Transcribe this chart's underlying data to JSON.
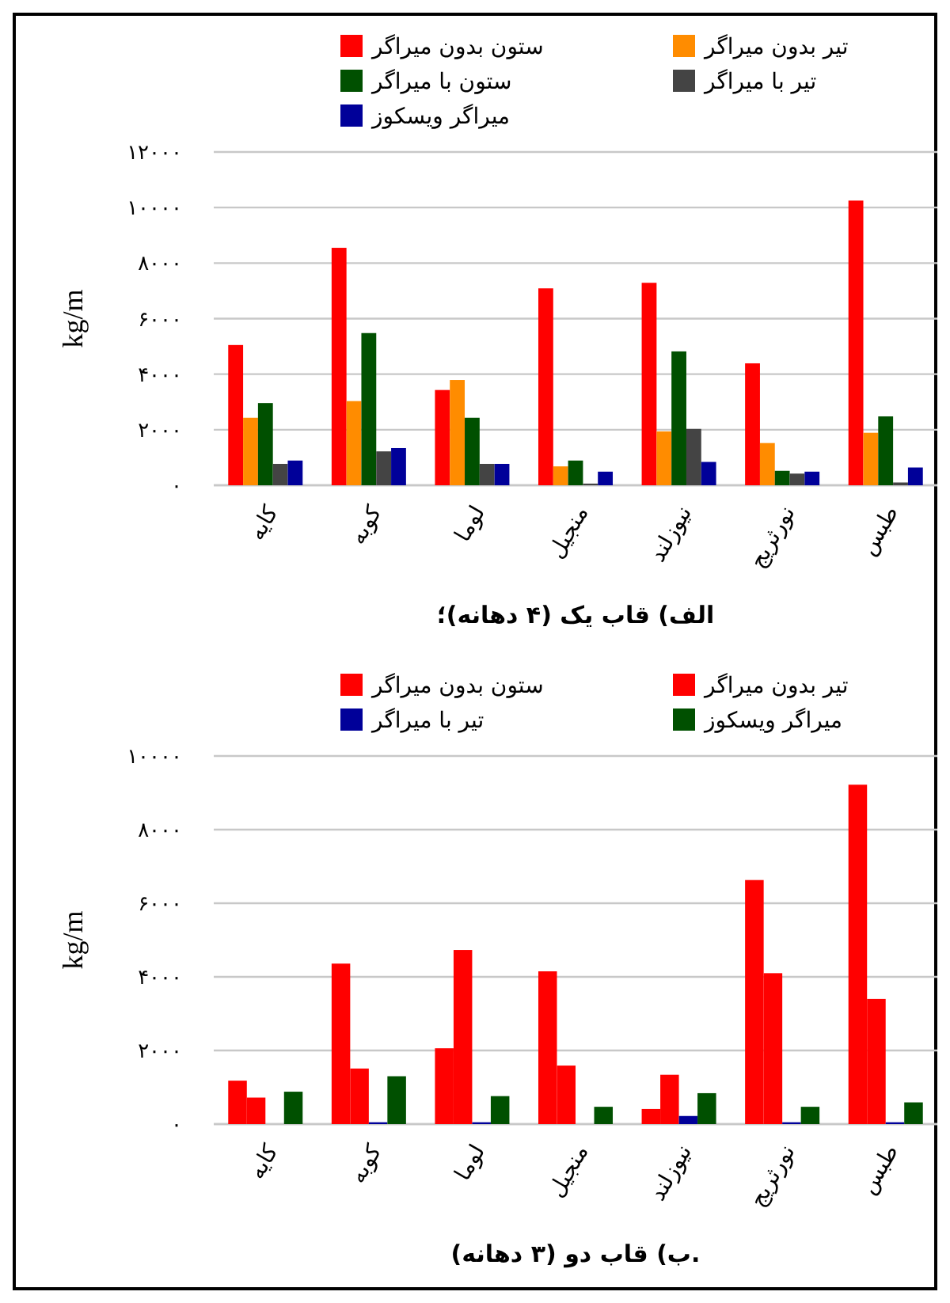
{
  "chart_data": [
    {
      "type": "bar",
      "title": "الف) قاب یک (۴ دهانه)؛",
      "ylabel": "kg/m",
      "categories": [
        "کایه",
        "کوبه",
        "لوما",
        "منجیل",
        "نیوزلند",
        "نورثریج",
        "طبس"
      ],
      "series": [
        {
          "name": "ستون بدون میراگر",
          "color": "#ff0000",
          "values": [
            5050,
            8550,
            3430,
            7090,
            7290,
            4390,
            10250
          ]
        },
        {
          "name": "تیر بدون میراگر",
          "color": "#ff8c00",
          "values": [
            2430,
            3030,
            3790,
            680,
            1940,
            1520,
            1890
          ]
        },
        {
          "name": "ستون با میراگر",
          "color": "#005000",
          "values": [
            2960,
            5480,
            2430,
            890,
            4820,
            520,
            2480
          ]
        },
        {
          "name": "تیر با میراگر",
          "color": "#444444",
          "values": [
            770,
            1220,
            770,
            60,
            2030,
            420,
            100
          ]
        },
        {
          "name": "میراگر ویسکوز",
          "color": "#000099",
          "values": [
            890,
            1340,
            770,
            490,
            840,
            490,
            640
          ]
        }
      ],
      "ylim": [
        0,
        12000
      ],
      "yticks": [
        {
          "value": 0,
          "label": "۰"
        },
        {
          "value": 2000,
          "label": "۲۰۰۰"
        },
        {
          "value": 4000,
          "label": "۴۰۰۰"
        },
        {
          "value": 6000,
          "label": "۶۰۰۰"
        },
        {
          "value": 8000,
          "label": "۸۰۰۰"
        },
        {
          "value": 10000,
          "label": "۱۰۰۰۰"
        },
        {
          "value": 12000,
          "label": "۱۲۰۰۰"
        }
      ],
      "grid": "y",
      "legend": "top"
    },
    {
      "type": "bar",
      "title": "ب) قاب دو (۳ دهانه).",
      "ylabel": "kg/m",
      "categories": [
        "کایه",
        "کوبه",
        "لوما",
        "منجیل",
        "نیوزلند",
        "نورثریج",
        "طبس"
      ],
      "series": [
        {
          "name": "ستون بدون میراگر",
          "color": "#ff0000",
          "values": [
            1180,
            4360,
            2060,
            4150,
            410,
            6630,
            9220
          ]
        },
        {
          "name": "تیر بدون میراگر",
          "color": "#ff0000",
          "values": [
            720,
            1510,
            4730,
            1590,
            1340,
            4100,
            3400
          ]
        },
        {
          "name": "تیر با میراگر",
          "color": "#000099",
          "values": [
            0,
            50,
            50,
            0,
            220,
            50,
            50
          ]
        },
        {
          "name": "میراگر ویسکوز",
          "color": "#005000",
          "values": [
            880,
            1300,
            760,
            470,
            840,
            470,
            590
          ]
        }
      ],
      "ylim": [
        0,
        10000
      ],
      "yticks": [
        {
          "value": 0,
          "label": "۰"
        },
        {
          "value": 2000,
          "label": "۲۰۰۰"
        },
        {
          "value": 4000,
          "label": "۴۰۰۰"
        },
        {
          "value": 6000,
          "label": "۶۰۰۰"
        },
        {
          "value": 8000,
          "label": "۸۰۰۰"
        },
        {
          "value": 10000,
          "label": "۱۰۰۰۰"
        }
      ],
      "grid": "y",
      "legend": "top"
    }
  ]
}
